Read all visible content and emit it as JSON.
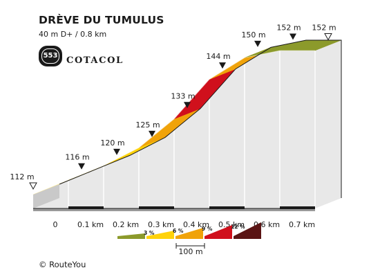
{
  "title": "DRÈVE DU TUMULUS",
  "subtitle": "40 m D+ / 0.8 km",
  "logo": {
    "badge_number": "553",
    "brand": "COTACOL"
  },
  "copyright": "© RouteYou",
  "legend": {
    "classes": [
      {
        "label": "",
        "color": "#8c9a2b"
      },
      {
        "label": "3 %",
        "color": "#ffd20a"
      },
      {
        "label": "6 %",
        "color": "#f0a30a"
      },
      {
        "label": "9 %",
        "color": "#d0101c"
      },
      {
        "label": "12 %",
        "color": "#5a1414"
      }
    ],
    "scale_label": "100 m"
  },
  "colors": {
    "olive": "#8c9a2b",
    "yellow": "#ffd20a",
    "orange": "#f0a30a",
    "red": "#d0101c",
    "darkred": "#5a1414",
    "side": "#e8e8e8",
    "base": "#1a1a1a"
  },
  "chart_data": {
    "type": "area",
    "xlabel": "",
    "ylabel": "",
    "x_tick_labels": [
      "0",
      "0.1 km",
      "0.2 km",
      "0.3 km",
      "0.4 km",
      "0.5 km",
      "0.6 km",
      "0.7 km"
    ],
    "points": [
      {
        "x": 0.0,
        "y": 112,
        "label": "112 m",
        "marker": "open"
      },
      {
        "x": 0.1,
        "y": 116,
        "label": "116 m",
        "marker": "filled"
      },
      {
        "x": 0.2,
        "y": 120,
        "label": "120 m",
        "marker": "filled"
      },
      {
        "x": 0.3,
        "y": 125,
        "label": "125 m",
        "marker": "filled"
      },
      {
        "x": 0.4,
        "y": 133,
        "label": "133 m",
        "marker": "filled"
      },
      {
        "x": 0.5,
        "y": 144,
        "label": "144 m",
        "marker": "filled"
      },
      {
        "x": 0.6,
        "y": 150,
        "label": "150 m",
        "marker": "filled"
      },
      {
        "x": 0.7,
        "y": 152,
        "label": "152 m",
        "marker": "filled"
      },
      {
        "x": 0.8,
        "y": 152,
        "label": "152 m",
        "marker": "open"
      }
    ],
    "segments": [
      {
        "from": 0.0,
        "to": 0.1,
        "color": "yellow"
      },
      {
        "from": 0.1,
        "to": 0.2,
        "color": "yellow"
      },
      {
        "from": 0.2,
        "to": 0.3,
        "color": "yellow"
      },
      {
        "from": 0.3,
        "to": 0.4,
        "color": "orange"
      },
      {
        "from": 0.4,
        "to": 0.5,
        "color": "red"
      },
      {
        "from": 0.5,
        "to": 0.6,
        "color": "orange"
      },
      {
        "from": 0.6,
        "to": 0.7,
        "color": "olive"
      },
      {
        "from": 0.7,
        "to": 0.8,
        "color": "olive"
      }
    ]
  }
}
